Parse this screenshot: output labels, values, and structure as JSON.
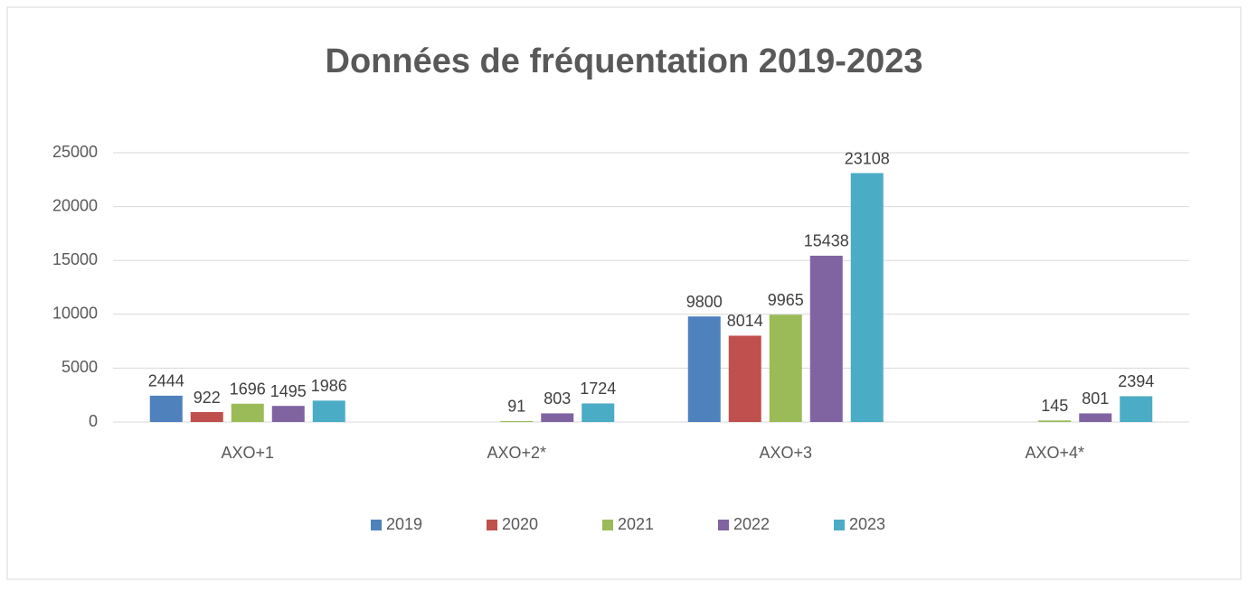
{
  "chart_data": {
    "type": "bar",
    "title": "Données de fréquentation 2019-2023",
    "categories": [
      "AXO+1",
      "AXO+2*",
      "AXO+3",
      "AXO+4*"
    ],
    "series": [
      {
        "name": "2019",
        "color": "#4f81bd",
        "values": [
          2444,
          null,
          9800,
          null
        ]
      },
      {
        "name": "2020",
        "color": "#c0504d",
        "values": [
          922,
          null,
          8014,
          null
        ]
      },
      {
        "name": "2021",
        "color": "#9bbb59",
        "values": [
          1696,
          91,
          9965,
          145
        ]
      },
      {
        "name": "2022",
        "color": "#8064a2",
        "values": [
          1495,
          803,
          15438,
          801
        ]
      },
      {
        "name": "2023",
        "color": "#4bacc6",
        "values": [
          1986,
          1724,
          23108,
          2394
        ]
      }
    ],
    "ylim": [
      0,
      25000
    ],
    "yticks": [
      0,
      5000,
      10000,
      15000,
      20000,
      25000
    ],
    "grid": true,
    "legend": "bottom"
  }
}
